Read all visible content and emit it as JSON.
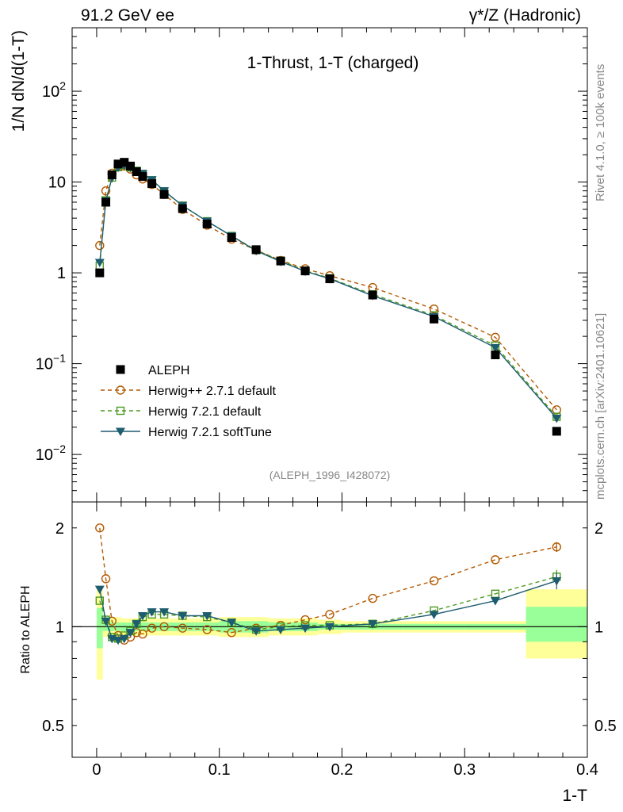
{
  "header": {
    "left": "91.2 GeV ee",
    "right_prefix": "γ*/Z",
    "right_suffix": "(Hadronic)"
  },
  "side_labels": {
    "rivet": "Rivet 4.1.0, ≥ 100k events",
    "mcplots": "mcplots.cern.ch [arXiv:2401.10621]"
  },
  "colors": {
    "aleph": "#000000",
    "herwigpp": "#b35900",
    "herwig721": "#4c9a1f",
    "softtune": "#1e5c70",
    "band_green": "#99ff99",
    "band_yellow": "#ffff99",
    "label_grey": "#888888"
  },
  "chart_data": [
    {
      "type": "line",
      "title": "1-Thrust, 1-T (charged)",
      "ylabel": "1/N  dN/d(1-T)",
      "xlabel": "",
      "yscale": "log",
      "ylim": [
        0.003,
        500
      ],
      "xlim": [
        -0.02,
        0.4
      ],
      "x_ticks": [
        0,
        0.1,
        0.2,
        0.3,
        0.4
      ],
      "y_ticks": [
        {
          "value": 0.01,
          "base": "10",
          "exp": "−2"
        },
        {
          "value": 0.1,
          "base": "10",
          "exp": "−1"
        },
        {
          "value": 1,
          "base": "1",
          "exp": ""
        },
        {
          "value": 10,
          "base": "10",
          "exp": ""
        },
        {
          "value": 100,
          "base": "10",
          "exp": "2"
        }
      ],
      "analysis_label": "(ALEPH_1996_I428072)",
      "x": [
        0.0025,
        0.0075,
        0.0125,
        0.0175,
        0.0225,
        0.0275,
        0.0325,
        0.0375,
        0.045,
        0.055,
        0.07,
        0.09,
        0.11,
        0.13,
        0.15,
        0.17,
        0.19,
        0.225,
        0.275,
        0.325,
        0.375
      ],
      "series": [
        {
          "name": "ALEPH",
          "key": "aleph",
          "marker": "filled-square",
          "values": [
            1.0,
            6.0,
            12.0,
            15.8,
            16.5,
            15.0,
            13.0,
            11.5,
            9.6,
            7.3,
            5.1,
            3.45,
            2.45,
            1.8,
            1.35,
            1.05,
            0.86,
            0.57,
            0.31,
            0.125,
            0.018
          ]
        },
        {
          "name": "Herwig++ 2.7.1 default",
          "key": "herwigpp",
          "marker": "open-circle",
          "dash": "5,4",
          "values": [
            2.0,
            8.0,
            12.5,
            14.8,
            15.0,
            13.9,
            12.0,
            10.8,
            9.4,
            7.3,
            5.0,
            3.35,
            2.35,
            1.78,
            1.37,
            1.11,
            0.93,
            0.69,
            0.4,
            0.195,
            0.031
          ]
        },
        {
          "name": "Herwig 7.2.1 default",
          "key": "herwig721",
          "marker": "open-square",
          "dash": "5,4",
          "values": [
            1.2,
            6.3,
            11.2,
            14.6,
            15.5,
            14.5,
            13.3,
            12.3,
            10.4,
            7.9,
            5.5,
            3.7,
            2.55,
            1.78,
            1.36,
            1.06,
            0.87,
            0.58,
            0.34,
            0.158,
            0.026
          ]
        },
        {
          "name": "Herwig 7.2.1 softTune",
          "key": "softtune",
          "marker": "filled-triangle-down",
          "dash": "",
          "values": [
            1.3,
            6.2,
            11.1,
            14.4,
            15.2,
            14.4,
            13.3,
            12.4,
            10.6,
            8.0,
            5.5,
            3.7,
            2.55,
            1.75,
            1.33,
            1.04,
            0.86,
            0.56,
            0.33,
            0.15,
            0.025
          ]
        }
      ]
    },
    {
      "type": "line",
      "title": "",
      "ylabel": "Ratio to ALEPH",
      "xlabel": "1-T",
      "yscale": "log",
      "ylim": [
        0.4,
        2.4
      ],
      "xlim": [
        -0.02,
        0.4
      ],
      "x_ticks": [
        0,
        0.1,
        0.2,
        0.3,
        0.4
      ],
      "x_tick_labels": [
        "0",
        "0.1",
        "0.2",
        "0.3",
        "0.4"
      ],
      "y_ticks": [
        0.5,
        1,
        2
      ],
      "y_tick_labels": [
        "0.5",
        "1",
        "2"
      ],
      "bands": {
        "x_edges": [
          0.0,
          0.005,
          0.01,
          0.015,
          0.02,
          0.025,
          0.03,
          0.035,
          0.04,
          0.05,
          0.06,
          0.08,
          0.1,
          0.12,
          0.14,
          0.16,
          0.18,
          0.2,
          0.25,
          0.3,
          0.35,
          0.4
        ],
        "green_low": [
          0.86,
          0.97,
          0.97,
          0.97,
          0.97,
          0.97,
          0.97,
          0.97,
          0.97,
          0.97,
          0.97,
          0.97,
          0.96,
          0.96,
          0.97,
          0.97,
          0.98,
          0.98,
          0.98,
          0.98,
          0.9
        ],
        "green_high": [
          1.14,
          1.03,
          1.03,
          1.03,
          1.03,
          1.03,
          1.03,
          1.03,
          1.03,
          1.03,
          1.03,
          1.03,
          1.04,
          1.04,
          1.03,
          1.03,
          1.02,
          1.02,
          1.02,
          1.02,
          1.15
        ],
        "yellow_low": [
          0.69,
          0.93,
          0.93,
          0.93,
          0.94,
          0.94,
          0.94,
          0.94,
          0.94,
          0.94,
          0.94,
          0.94,
          0.93,
          0.93,
          0.94,
          0.94,
          0.95,
          0.96,
          0.96,
          0.96,
          0.8
        ],
        "yellow_high": [
          1.3,
          1.07,
          1.07,
          1.07,
          1.06,
          1.06,
          1.06,
          1.06,
          1.06,
          1.06,
          1.06,
          1.06,
          1.07,
          1.07,
          1.06,
          1.06,
          1.05,
          1.04,
          1.04,
          1.04,
          1.3
        ]
      },
      "series": [
        {
          "name": "Herwig++ 2.7.1 default",
          "key": "herwigpp",
          "marker": "open-circle",
          "dash": "5,4",
          "values": [
            2.0,
            1.4,
            1.04,
            0.94,
            0.91,
            0.93,
            0.96,
            0.95,
            0.99,
            1.0,
            0.99,
            0.98,
            0.96,
            0.99,
            1.01,
            1.05,
            1.09,
            1.22,
            1.38,
            1.6,
            1.75
          ],
          "err": [
            0,
            0,
            0,
            0,
            0,
            0,
            0,
            0,
            0,
            0,
            0,
            0,
            0,
            0,
            0,
            0,
            0,
            0,
            0,
            0,
            0.06
          ]
        },
        {
          "name": "Herwig 7.2.1 default",
          "key": "herwig721",
          "marker": "open-square",
          "dash": "5,4",
          "values": [
            1.2,
            1.05,
            0.93,
            0.92,
            0.94,
            0.97,
            1.02,
            1.07,
            1.09,
            1.09,
            1.08,
            1.07,
            1.03,
            0.98,
            1.0,
            1.01,
            1.01,
            1.02,
            1.12,
            1.26,
            1.42
          ],
          "err": [
            0,
            0,
            0,
            0,
            0,
            0,
            0,
            0,
            0,
            0,
            0,
            0,
            0,
            0,
            0,
            0,
            0,
            0,
            0,
            0,
            0.07
          ]
        },
        {
          "name": "Herwig 7.2.1 softTune",
          "key": "softtune",
          "marker": "filled-triangle-down",
          "dash": "",
          "values": [
            1.3,
            1.04,
            0.92,
            0.91,
            0.92,
            0.96,
            1.02,
            1.08,
            1.11,
            1.11,
            1.08,
            1.08,
            1.03,
            0.97,
            0.98,
            0.99,
            1.0,
            1.02,
            1.09,
            1.2,
            1.38
          ],
          "err": [
            0,
            0,
            0,
            0,
            0,
            0,
            0,
            0,
            0,
            0,
            0,
            0,
            0,
            0,
            0,
            0,
            0,
            0,
            0,
            0.03,
            0.08
          ]
        }
      ]
    }
  ]
}
